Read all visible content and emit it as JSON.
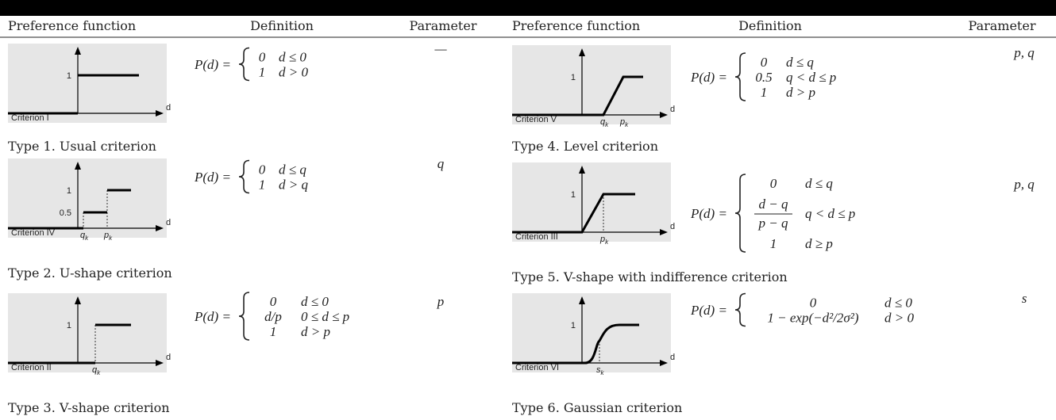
{
  "header": {
    "columns": [
      "Preference function",
      "Definition",
      "Parameter",
      "Preference function",
      "Definition",
      "Parameter"
    ]
  },
  "rows": [
    {
      "figure": {
        "y_tick": [
          "1"
        ],
        "x_tick": [],
        "axis": "d",
        "criterion": "Criterion I"
      },
      "definition": {
        "lhs": "P(d) =",
        "cases": [
          [
            "0",
            "d ≤ 0"
          ],
          [
            "1",
            "d > 0"
          ]
        ]
      },
      "parameter": "—",
      "caption": "Type 1. Usual criterion"
    },
    {
      "figure": {
        "y_tick": [
          "1",
          "0.5"
        ],
        "x_tick": [
          {
            "base": "q",
            "sub": "k"
          },
          {
            "base": "p",
            "sub": "k"
          }
        ],
        "axis": "d",
        "criterion": "Criterion IV"
      },
      "definition": {
        "lhs": "P(d) =",
        "cases": [
          [
            "0",
            "d ≤ q"
          ],
          [
            "1",
            "d > q"
          ]
        ]
      },
      "parameter": "q",
      "caption": "Type 2. U-shape criterion"
    },
    {
      "figure": {
        "y_tick": [
          "1"
        ],
        "x_tick": [
          {
            "base": "q",
            "sub": "k"
          }
        ],
        "axis": "d",
        "criterion": "Criterion II"
      },
      "definition": {
        "lhs": "P(d) =",
        "cases": [
          [
            "0",
            "d ≤ 0"
          ],
          [
            "d/p",
            "0 ≤ d ≤ p"
          ],
          [
            "1",
            "d > p"
          ]
        ]
      },
      "parameter": "p",
      "caption": "Type 3. V-shape criterion"
    },
    {
      "figure": {
        "y_tick": [
          "1"
        ],
        "x_tick": [
          {
            "base": "q",
            "sub": "k"
          },
          {
            "base": "p",
            "sub": "k"
          }
        ],
        "axis": "d",
        "criterion": "Criterion V"
      },
      "definition": {
        "lhs": "P(d) =",
        "cases": [
          [
            "0",
            "d ≤ q"
          ],
          [
            "0.5",
            "q < d ≤ p"
          ],
          [
            "1",
            "d > p"
          ]
        ]
      },
      "parameter": "p, q",
      "caption": "Type 4. Level criterion"
    },
    {
      "figure": {
        "y_tick": [
          "1"
        ],
        "x_tick": [
          {
            "base": "p",
            "sub": "k"
          }
        ],
        "axis": "d",
        "criterion": "Criterion III"
      },
      "definition": {
        "lhs": "P(d) =",
        "cases": [
          [
            "0",
            "d ≤ q"
          ],
          [
            {
              "num": "d − q",
              "den": "p − q"
            },
            "q < d ≤ p"
          ],
          [
            "1",
            "d ≥ p"
          ]
        ]
      },
      "parameter": "p, q",
      "caption": "Type 5. V-shape with indifference criterion"
    },
    {
      "figure": {
        "y_tick": [
          "1"
        ],
        "x_tick": [
          {
            "base": "s",
            "sub": "k"
          }
        ],
        "axis": "d",
        "criterion": "Criterion VI"
      },
      "definition": {
        "lhs": "P(d) =",
        "cases": [
          [
            "0",
            "d ≤ 0"
          ],
          [
            "1 − exp(−d²/2σ²)",
            "d > 0"
          ]
        ]
      },
      "parameter": "s",
      "caption": "Type 6. Gaussian criterion"
    }
  ]
}
